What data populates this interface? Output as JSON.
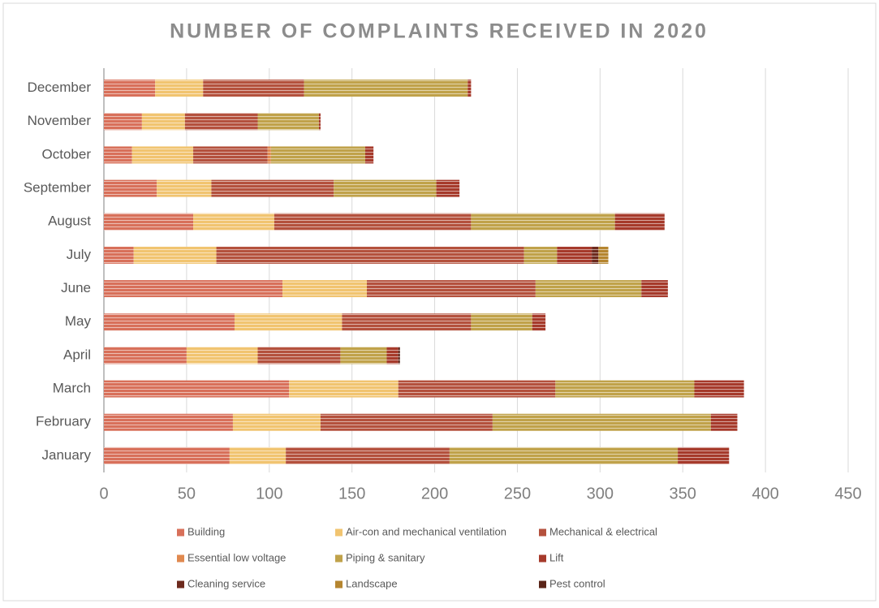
{
  "chart_data": {
    "type": "stacked_bar_horizontal",
    "title": "NUMBER OF COMPLAINTS RECEIVED IN 2020",
    "categories": [
      "January",
      "February",
      "March",
      "April",
      "May",
      "June",
      "July",
      "August",
      "September",
      "October",
      "November",
      "December"
    ],
    "series": [
      {
        "name": "Building",
        "color": "#d8705a",
        "values": [
          76,
          78,
          112,
          50,
          79,
          108,
          18,
          54,
          32,
          17,
          23,
          31
        ]
      },
      {
        "name": "Air-con and mechanical ventilation",
        "color": "#f1c470",
        "values": [
          34,
          53,
          66,
          43,
          65,
          51,
          50,
          49,
          33,
          37,
          26,
          29
        ]
      },
      {
        "name": "Mechanical & electrical",
        "color": "#b4513d",
        "values": [
          99,
          104,
          95,
          50,
          78,
          102,
          186,
          119,
          74,
          45,
          44,
          61
        ]
      },
      {
        "name": "Essential low voltage",
        "color": "#e0894f",
        "values": [
          0,
          0,
          0,
          0,
          0,
          0,
          0,
          0,
          0,
          2,
          0,
          0
        ]
      },
      {
        "name": "Piping & sanitary",
        "color": "#c0a24a",
        "values": [
          138,
          132,
          84,
          28,
          37,
          64,
          20,
          87,
          62,
          57,
          37,
          99
        ]
      },
      {
        "name": "Lift",
        "color": "#a63a2b",
        "values": [
          31,
          16,
          30,
          7,
          8,
          16,
          21,
          30,
          14,
          5,
          1,
          2
        ]
      },
      {
        "name": "Cleaning service",
        "color": "#6d2a1d",
        "values": [
          0,
          0,
          0,
          0,
          0,
          0,
          4,
          0,
          0,
          0,
          0,
          0
        ]
      },
      {
        "name": "Landscape",
        "color": "#b5852f",
        "values": [
          0,
          0,
          0,
          0,
          0,
          0,
          6,
          0,
          0,
          0,
          0,
          0
        ]
      },
      {
        "name": "Pest control",
        "color": "#5a2418",
        "values": [
          0,
          0,
          0,
          1,
          0,
          0,
          0,
          0,
          0,
          0,
          0,
          0
        ]
      }
    ],
    "xlim": [
      0,
      450
    ],
    "xticks": [
      0,
      50,
      100,
      150,
      200,
      250,
      300,
      350,
      400,
      450
    ],
    "grid": true
  }
}
